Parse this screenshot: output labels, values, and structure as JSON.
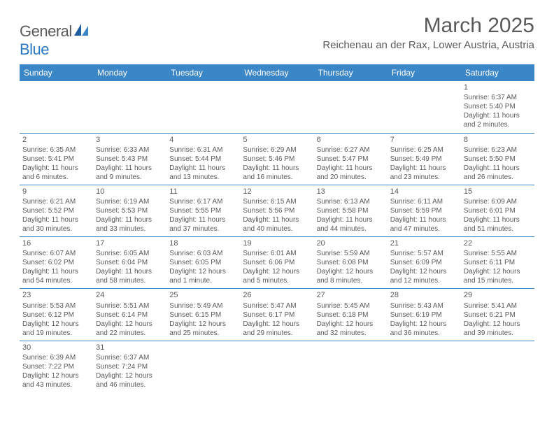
{
  "brand": {
    "part1": "General",
    "part2": "Blue"
  },
  "title": "March 2025",
  "location": "Reichenau an der Rax, Lower Austria, Austria",
  "colors": {
    "header_bg": "#3b86c6",
    "header_fg": "#ffffff",
    "text": "#5a5a5a",
    "rule": "#3b86c6",
    "page_bg": "#ffffff"
  },
  "weekdays": [
    "Sunday",
    "Monday",
    "Tuesday",
    "Wednesday",
    "Thursday",
    "Friday",
    "Saturday"
  ],
  "weeks": [
    [
      null,
      null,
      null,
      null,
      null,
      null,
      {
        "n": "1",
        "sr": "Sunrise: 6:37 AM",
        "ss": "Sunset: 5:40 PM",
        "dl": "Daylight: 11 hours and 2 minutes."
      }
    ],
    [
      {
        "n": "2",
        "sr": "Sunrise: 6:35 AM",
        "ss": "Sunset: 5:41 PM",
        "dl": "Daylight: 11 hours and 6 minutes."
      },
      {
        "n": "3",
        "sr": "Sunrise: 6:33 AM",
        "ss": "Sunset: 5:43 PM",
        "dl": "Daylight: 11 hours and 9 minutes."
      },
      {
        "n": "4",
        "sr": "Sunrise: 6:31 AM",
        "ss": "Sunset: 5:44 PM",
        "dl": "Daylight: 11 hours and 13 minutes."
      },
      {
        "n": "5",
        "sr": "Sunrise: 6:29 AM",
        "ss": "Sunset: 5:46 PM",
        "dl": "Daylight: 11 hours and 16 minutes."
      },
      {
        "n": "6",
        "sr": "Sunrise: 6:27 AM",
        "ss": "Sunset: 5:47 PM",
        "dl": "Daylight: 11 hours and 20 minutes."
      },
      {
        "n": "7",
        "sr": "Sunrise: 6:25 AM",
        "ss": "Sunset: 5:49 PM",
        "dl": "Daylight: 11 hours and 23 minutes."
      },
      {
        "n": "8",
        "sr": "Sunrise: 6:23 AM",
        "ss": "Sunset: 5:50 PM",
        "dl": "Daylight: 11 hours and 26 minutes."
      }
    ],
    [
      {
        "n": "9",
        "sr": "Sunrise: 6:21 AM",
        "ss": "Sunset: 5:52 PM",
        "dl": "Daylight: 11 hours and 30 minutes."
      },
      {
        "n": "10",
        "sr": "Sunrise: 6:19 AM",
        "ss": "Sunset: 5:53 PM",
        "dl": "Daylight: 11 hours and 33 minutes."
      },
      {
        "n": "11",
        "sr": "Sunrise: 6:17 AM",
        "ss": "Sunset: 5:55 PM",
        "dl": "Daylight: 11 hours and 37 minutes."
      },
      {
        "n": "12",
        "sr": "Sunrise: 6:15 AM",
        "ss": "Sunset: 5:56 PM",
        "dl": "Daylight: 11 hours and 40 minutes."
      },
      {
        "n": "13",
        "sr": "Sunrise: 6:13 AM",
        "ss": "Sunset: 5:58 PM",
        "dl": "Daylight: 11 hours and 44 minutes."
      },
      {
        "n": "14",
        "sr": "Sunrise: 6:11 AM",
        "ss": "Sunset: 5:59 PM",
        "dl": "Daylight: 11 hours and 47 minutes."
      },
      {
        "n": "15",
        "sr": "Sunrise: 6:09 AM",
        "ss": "Sunset: 6:01 PM",
        "dl": "Daylight: 11 hours and 51 minutes."
      }
    ],
    [
      {
        "n": "16",
        "sr": "Sunrise: 6:07 AM",
        "ss": "Sunset: 6:02 PM",
        "dl": "Daylight: 11 hours and 54 minutes."
      },
      {
        "n": "17",
        "sr": "Sunrise: 6:05 AM",
        "ss": "Sunset: 6:04 PM",
        "dl": "Daylight: 11 hours and 58 minutes."
      },
      {
        "n": "18",
        "sr": "Sunrise: 6:03 AM",
        "ss": "Sunset: 6:05 PM",
        "dl": "Daylight: 12 hours and 1 minute."
      },
      {
        "n": "19",
        "sr": "Sunrise: 6:01 AM",
        "ss": "Sunset: 6:06 PM",
        "dl": "Daylight: 12 hours and 5 minutes."
      },
      {
        "n": "20",
        "sr": "Sunrise: 5:59 AM",
        "ss": "Sunset: 6:08 PM",
        "dl": "Daylight: 12 hours and 8 minutes."
      },
      {
        "n": "21",
        "sr": "Sunrise: 5:57 AM",
        "ss": "Sunset: 6:09 PM",
        "dl": "Daylight: 12 hours and 12 minutes."
      },
      {
        "n": "22",
        "sr": "Sunrise: 5:55 AM",
        "ss": "Sunset: 6:11 PM",
        "dl": "Daylight: 12 hours and 15 minutes."
      }
    ],
    [
      {
        "n": "23",
        "sr": "Sunrise: 5:53 AM",
        "ss": "Sunset: 6:12 PM",
        "dl": "Daylight: 12 hours and 19 minutes."
      },
      {
        "n": "24",
        "sr": "Sunrise: 5:51 AM",
        "ss": "Sunset: 6:14 PM",
        "dl": "Daylight: 12 hours and 22 minutes."
      },
      {
        "n": "25",
        "sr": "Sunrise: 5:49 AM",
        "ss": "Sunset: 6:15 PM",
        "dl": "Daylight: 12 hours and 25 minutes."
      },
      {
        "n": "26",
        "sr": "Sunrise: 5:47 AM",
        "ss": "Sunset: 6:17 PM",
        "dl": "Daylight: 12 hours and 29 minutes."
      },
      {
        "n": "27",
        "sr": "Sunrise: 5:45 AM",
        "ss": "Sunset: 6:18 PM",
        "dl": "Daylight: 12 hours and 32 minutes."
      },
      {
        "n": "28",
        "sr": "Sunrise: 5:43 AM",
        "ss": "Sunset: 6:19 PM",
        "dl": "Daylight: 12 hours and 36 minutes."
      },
      {
        "n": "29",
        "sr": "Sunrise: 5:41 AM",
        "ss": "Sunset: 6:21 PM",
        "dl": "Daylight: 12 hours and 39 minutes."
      }
    ],
    [
      {
        "n": "30",
        "sr": "Sunrise: 6:39 AM",
        "ss": "Sunset: 7:22 PM",
        "dl": "Daylight: 12 hours and 43 minutes."
      },
      {
        "n": "31",
        "sr": "Sunrise: 6:37 AM",
        "ss": "Sunset: 7:24 PM",
        "dl": "Daylight: 12 hours and 46 minutes."
      },
      null,
      null,
      null,
      null,
      null
    ]
  ]
}
